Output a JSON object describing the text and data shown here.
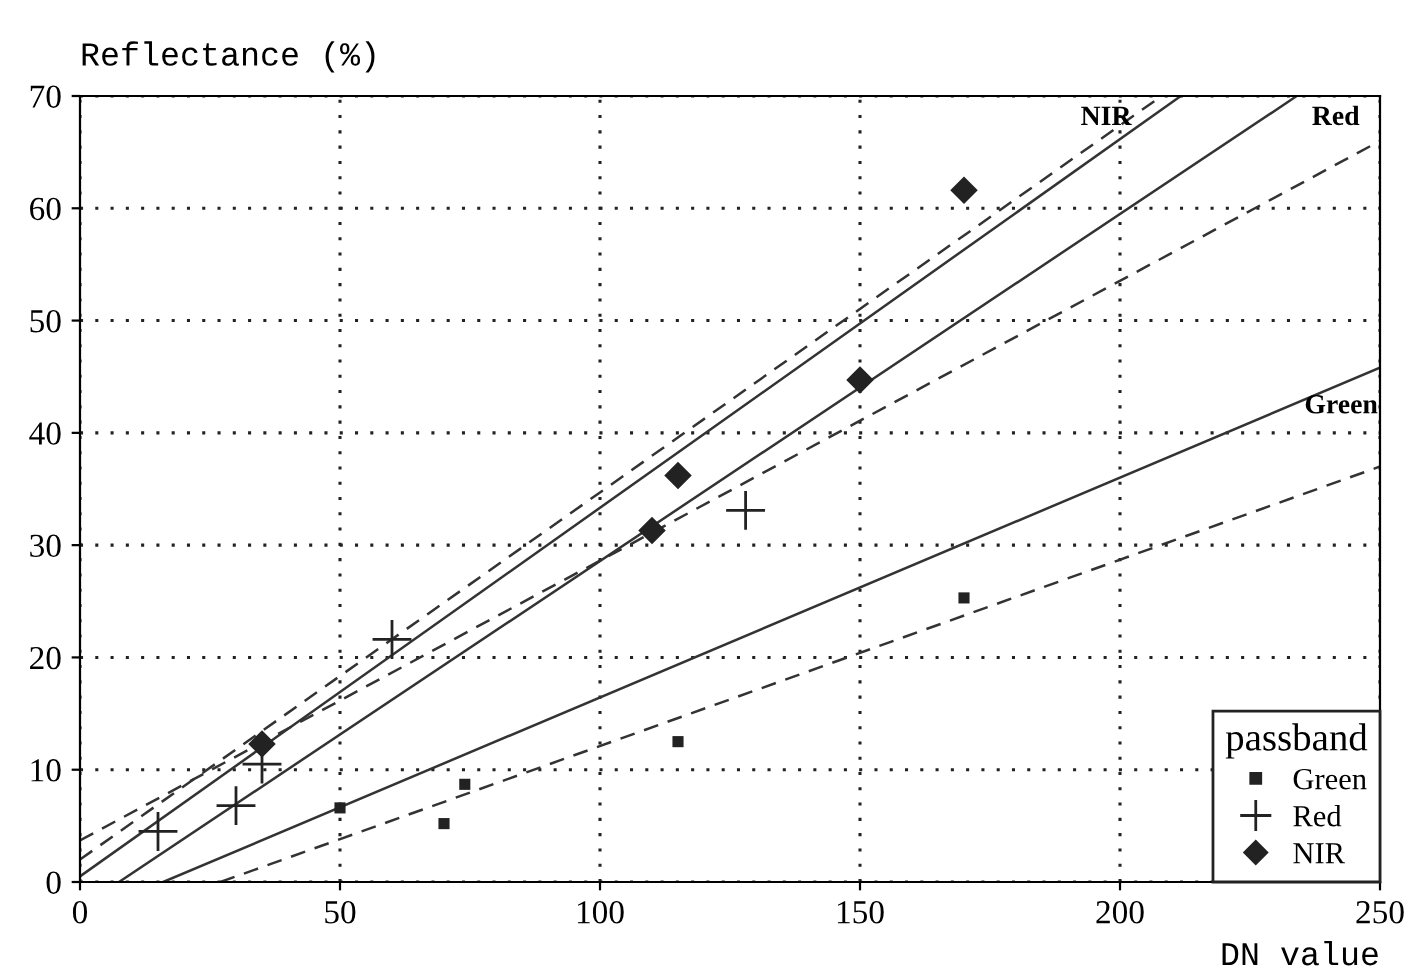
{
  "chart_data": {
    "type": "scatter",
    "xlabel": "DN value",
    "ylabel": "Reflectance (%)",
    "legend_title": "passband",
    "xlim": [
      0,
      250
    ],
    "ylim": [
      0,
      70
    ],
    "xticks": [
      0,
      50,
      100,
      150,
      200,
      250
    ],
    "yticks": [
      0,
      10,
      20,
      30,
      40,
      50,
      60,
      70
    ],
    "grid": true,
    "legend": "bottom right",
    "series": [
      {
        "name": "Green",
        "marker": "square",
        "color": "#222222",
        "x": [
          50,
          70,
          74,
          115,
          170
        ],
        "values": [
          6.6,
          5.2,
          8.7,
          12.5,
          25.3
        ]
      },
      {
        "name": "Red",
        "marker": "cross",
        "color": "#222222",
        "x": [
          15,
          30,
          35,
          60,
          128
        ],
        "values": [
          4.5,
          6.8,
          10.5,
          21.6,
          33.1
        ]
      },
      {
        "name": "NIR",
        "marker": "diamond",
        "color": "#222222",
        "x": [
          35,
          110,
          115,
          150,
          170
        ],
        "values": [
          12.3,
          31.3,
          36.2,
          44.7,
          61.6
        ]
      },
      {
        "type": "line",
        "line_style": "solid",
        "color": "#333333",
        "x": [
          16,
          250
        ],
        "values": [
          0,
          45.8
        ]
      },
      {
        "type": "line",
        "line_style": "dashed",
        "color": "#333333",
        "x": [
          27,
          250
        ],
        "values": [
          0,
          37
        ]
      },
      {
        "type": "line",
        "line_style": "solid",
        "color": "#333333",
        "x": [
          7.5,
          234
        ],
        "values": [
          0,
          70
        ]
      },
      {
        "type": "line",
        "line_style": "dashed",
        "color": "#333333",
        "x": [
          0,
          250
        ],
        "values": [
          3.7,
          66
        ]
      },
      {
        "type": "line",
        "line_style": "solid",
        "color": "#333333",
        "x": [
          0,
          211.7
        ],
        "values": [
          0.5,
          70
        ]
      },
      {
        "type": "line",
        "line_style": "dashed",
        "color": "#333333",
        "x": [
          0,
          208
        ],
        "values": [
          2,
          70
        ]
      }
    ],
    "annotations": [
      {
        "text": "NIR",
        "x": 208,
        "y": 70
      },
      {
        "text": "Red",
        "x": 234,
        "y": 70
      },
      {
        "text": "Green",
        "x": 250,
        "y": 45.8
      }
    ]
  }
}
